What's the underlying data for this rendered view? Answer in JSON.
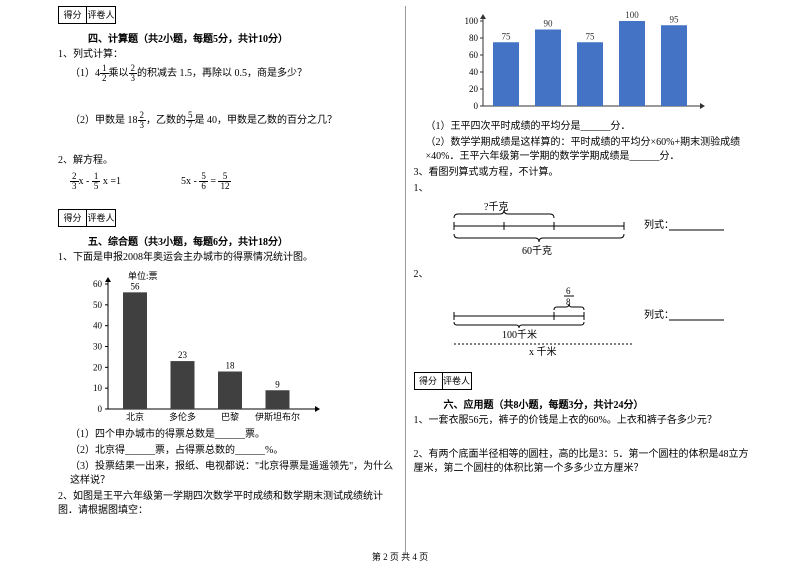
{
  "scorebox": {
    "c1": "得分",
    "c2": "评卷人"
  },
  "left": {
    "sec4": {
      "title": "四、计算题（共2小题，每题5分，共计10分）",
      "q1": "1、列式计算：",
      "q1a_pre": "（1）4",
      "q1a_mid": "乘以",
      "q1a_post": "的积减去 1.5，再除以 0.5，商是多少？",
      "q1b_pre": "（2）甲数是 18",
      "q1b_mid": "，乙数的",
      "q1b_post": "是 40，甲数是乙数的百分之几？",
      "q2": "2、解方程。",
      "eq1_a": "x - ",
      "eq1_b": " x =1",
      "eq2_a": "5x - ",
      "eq2_b": " = "
    },
    "sec5": {
      "title": "五、综合题（共3小题，每题6分，共计18分）",
      "q1": "1、下面是申报2008年奥运会主办城市的得票情况统计图。",
      "chart": {
        "unit": "单位:票",
        "ymax": 60,
        "ytick": 10,
        "cats": [
          "北京",
          "多伦多",
          "巴黎",
          "伊斯坦布尔"
        ],
        "vals": [
          56,
          23,
          18,
          9
        ],
        "color": "#404040",
        "axis_color": "#000",
        "font_size": 9
      },
      "q1a": "（1）四个申办城市的得票总数是______票。",
      "q1b": "（2）北京得______票，占得票总数的______%。",
      "q1c": "（3）投票结果一出来，报纸、电视都说：\"北京得票是遥遥领先\"，为什么这样说？",
      "q2": "2、如图是王平六年级第一学期四次数学平时成绩和数学期末测试成绩统计图．请根据图填空："
    }
  },
  "right": {
    "chart": {
      "ymax": 100,
      "ytick": 20,
      "vals": [
        75,
        90,
        75,
        100,
        95
      ],
      "color": "#4472c4",
      "label_color": "#333",
      "axis_color": "#333",
      "font_size": 9
    },
    "q1": "（1）王平四次平时成绩的平均分是______分．",
    "q2": "（2）数学学期成绩是这样算的：平时成绩的平均分×60%+期末测验成绩×40%．王平六年级第一学期的数学学期成绩是______分．",
    "q3": "3、看图列算式或方程，不计算。",
    "q3_1": "1、",
    "d1": {
      "top": "?千克",
      "bot": "60千克",
      "lbl": "列式："
    },
    "q3_2": "2、",
    "d2": {
      "top_frac_n": "6",
      "top_frac_d": "8",
      "mid": "100千米",
      "bot": "x 千米",
      "lbl": "列式："
    },
    "sec6": {
      "title": "六、应用题（共8小题，每题3分，共计24分）",
      "q1": "1、一套衣服56元，裤子的价钱是上衣的60%。上衣和裤子各多少元？",
      "q2": "2、有两个底面半径相等的圆柱，高的比是3：5．第一个圆柱的体积是48立方厘米，第二个圆柱的体积比第一个多多少立方厘米？"
    }
  },
  "footer": "第 2 页 共 4 页"
}
